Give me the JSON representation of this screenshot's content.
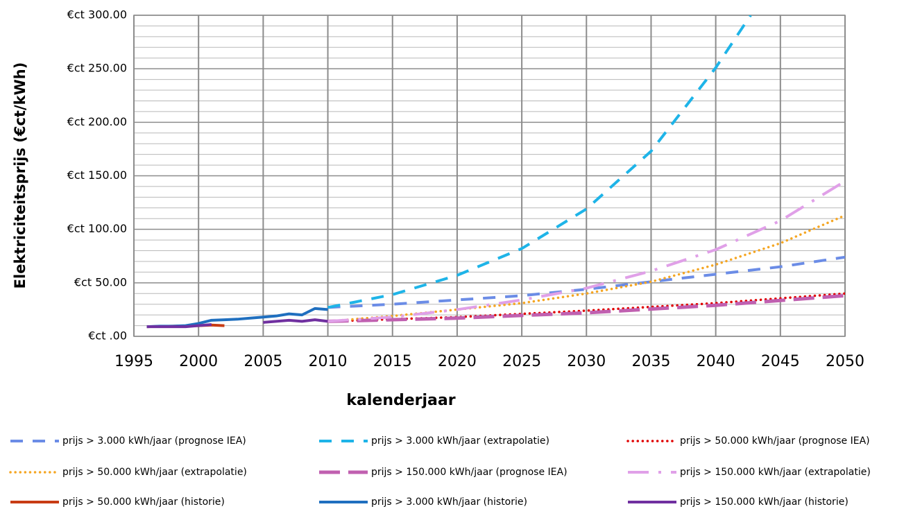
{
  "chart_data": {
    "type": "line",
    "xlabel": "kalenderjaar",
    "ylabel": "Elektriciteitsprijs (€ct/kWh)",
    "xlim": [
      1995,
      2050
    ],
    "xticks": [
      1995,
      2000,
      2005,
      2010,
      2015,
      2020,
      2025,
      2030,
      2035,
      2040,
      2045,
      2050
    ],
    "ylim": [
      0,
      300
    ],
    "yticks": [
      {
        "value": 0,
        "label": "€ct .00"
      },
      {
        "value": 50,
        "label": "€ct 50.00"
      },
      {
        "value": 100,
        "label": "€ct 100.00"
      },
      {
        "value": 150,
        "label": "€ct 150.00"
      },
      {
        "value": 200,
        "label": "€ct 200.00"
      },
      {
        "value": 250,
        "label": "€ct 250.00"
      },
      {
        "value": 300,
        "label": "€ct 300.00"
      }
    ],
    "yminor_grid": [
      10,
      20,
      30,
      40,
      60,
      70,
      80,
      90,
      110,
      120,
      130,
      140,
      160,
      170,
      180,
      190,
      210,
      220,
      230,
      240,
      260,
      270,
      280,
      290
    ],
    "grid": true,
    "legend": "bottom",
    "series": [
      {
        "name": "prijs > 3.000 kWh/jaar (prognose IEA)",
        "color": "#6b8ce6",
        "style": "dashed",
        "x": [
          2010,
          2015,
          2020,
          2025,
          2030,
          2035,
          2040,
          2045,
          2050
        ],
        "values": [
          27,
          30,
          34,
          38,
          44,
          51,
          58,
          65,
          74
        ]
      },
      {
        "name": "prijs > 3.000 kWh/jaar (extrapolatie)",
        "color": "#1eb4e8",
        "style": "dashed",
        "x": [
          2010,
          2015,
          2020,
          2025,
          2030,
          2035,
          2040,
          2042.7
        ],
        "values": [
          27,
          39,
          57,
          82,
          119,
          173,
          251,
          300
        ]
      },
      {
        "name": "prijs > 50.000 kWh/jaar (prognose IEA)",
        "color": "#e00000",
        "style": "dotted",
        "x": [
          2010,
          2020,
          2030,
          2040,
          2050
        ],
        "values": [
          14,
          18,
          24,
          31,
          40
        ]
      },
      {
        "name": "prijs > 50.000 kWh/jaar (extrapolatie)",
        "color": "#f5a623",
        "style": "dotted",
        "x": [
          2010,
          2015,
          2020,
          2025,
          2030,
          2035,
          2040,
          2045,
          2050
        ],
        "values": [
          14,
          19,
          25,
          31,
          40,
          51,
          67,
          87,
          113
        ]
      },
      {
        "name": "prijs > 150.000 kWh/jaar (prognose IEA)",
        "color": "#c060b0",
        "style": "longdash",
        "x": [
          2010,
          2020,
          2030,
          2040,
          2050
        ],
        "values": [
          14,
          17,
          22,
          29,
          38
        ]
      },
      {
        "name": "prijs > 150.000 kWh/jaar (extrapolatie)",
        "color": "#e0a0e8",
        "style": "dashdot",
        "x": [
          2010,
          2015,
          2020,
          2025,
          2030,
          2035,
          2040,
          2045,
          2050
        ],
        "values": [
          14,
          18,
          25,
          34,
          45,
          61,
          81,
          108,
          145
        ]
      },
      {
        "name": "prijs > 50.000 kWh/jaar (historie)",
        "color": "#c83c14",
        "style": "solid",
        "x": [
          1996,
          1998,
          2000,
          2001,
          2002
        ],
        "values": [
          9,
          9.5,
          10,
          10.5,
          10
        ]
      },
      {
        "name": "prijs > 3.000 kWh/jaar (historie)",
        "color": "#1f6fbf",
        "style": "solid",
        "x": [
          1996,
          1997,
          1998,
          1999,
          2000,
          2001,
          2002,
          2003,
          2004,
          2005,
          2006,
          2007,
          2008,
          2009,
          2010
        ],
        "values": [
          9,
          9.5,
          9.5,
          10,
          12,
          15,
          15.5,
          16,
          17,
          18,
          19,
          21,
          20,
          26,
          25
        ]
      },
      {
        "name": "prijs > 150.000 kWh/jaar (historie)",
        "color": "#7030a0",
        "style": "solid",
        "x": [
          1996,
          1998,
          1999,
          2000,
          2001,
          2003,
          2005,
          2006,
          2007,
          2008,
          2009,
          2010
        ],
        "values": [
          9,
          9,
          9,
          10,
          11,
          null,
          13,
          14,
          15,
          14,
          15.5,
          14
        ]
      }
    ]
  }
}
